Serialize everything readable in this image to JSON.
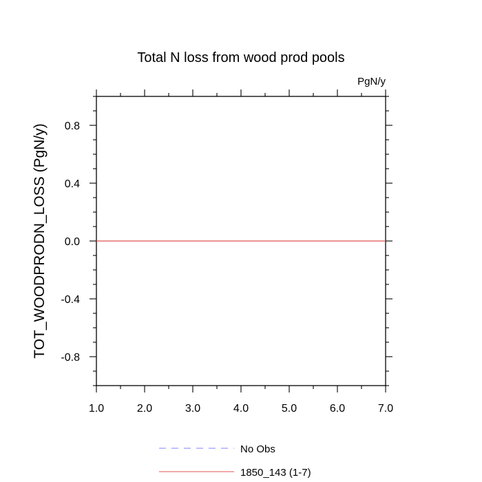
{
  "chart_data": {
    "type": "line",
    "title": "Total N loss from wood prod pools",
    "units_label": "PgN/y",
    "ylabel": "TOT_WOODPRODN_LOSS  (PgN/y)",
    "xlabel": "",
    "xlim": [
      1.0,
      7.0
    ],
    "ylim": [
      -1.0,
      1.0
    ],
    "x_ticks": [
      1.0,
      2.0,
      3.0,
      4.0,
      5.0,
      6.0,
      7.0
    ],
    "x_tick_labels": [
      "1.0",
      "2.0",
      "3.0",
      "4.0",
      "5.0",
      "6.0",
      "7.0"
    ],
    "y_ticks": [
      -0.8,
      -0.4,
      0.0,
      0.4,
      0.8
    ],
    "y_tick_labels": [
      "-0.8",
      "-0.4",
      "0.0",
      "0.4",
      "0.8"
    ],
    "grid": false,
    "legend_position": "bottom",
    "series": [
      {
        "name": "No Obs",
        "x": [],
        "y": [],
        "color": "#8080ff",
        "dash": true
      },
      {
        "name": "1850_143 (1-7)",
        "x": [
          1,
          2,
          3,
          4,
          5,
          6,
          7
        ],
        "y": [
          0,
          0,
          0,
          0,
          0,
          0,
          0
        ],
        "color": "#e05050",
        "dash": false
      }
    ]
  }
}
